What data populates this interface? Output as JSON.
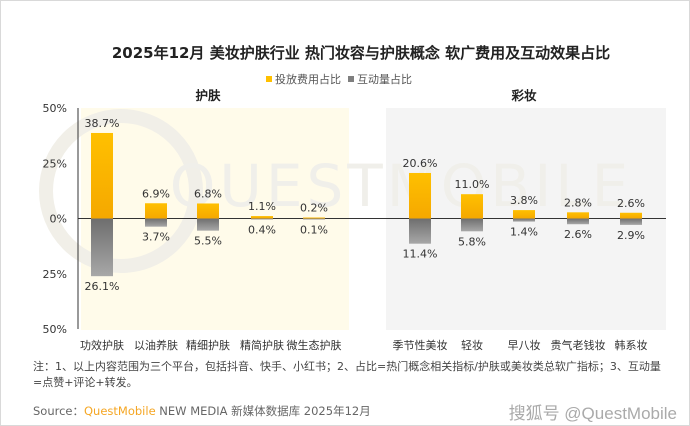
{
  "chart_data": {
    "type": "bar",
    "title": "2025年12月 美妆护肤行业 热门妆容与护肤概念 软广费用及互动效果占比",
    "legend": [
      {
        "name": "投放费用占比",
        "color": "#FFC000"
      },
      {
        "name": "互动量占比",
        "color": "#7F7F7F"
      }
    ],
    "legend_position": "top-center",
    "yticks": [
      "50%",
      "25%",
      "0%",
      "25%",
      "50%"
    ],
    "ylim": [
      -50,
      50
    ],
    "groups": [
      {
        "name": "护肤",
        "categories": [
          "功效护肤",
          "以油养肤",
          "精细护肤",
          "精简护肤",
          "微生态护肤"
        ],
        "spend": [
          38.7,
          6.9,
          6.8,
          1.1,
          0.2
        ],
        "interaction": [
          26.1,
          3.7,
          5.5,
          0.4,
          0.1
        ],
        "spend_labels": [
          "38.7%",
          "6.9%",
          "6.8%",
          "1.1%",
          "0.2%"
        ],
        "interaction_labels": [
          "26.1%",
          "3.7%",
          "5.5%",
          "0.4%",
          "0.1%"
        ]
      },
      {
        "name": "彩妆",
        "categories": [
          "季节性美妆",
          "轻妆",
          "早八妆",
          "贵气老钱妆",
          "韩系妆"
        ],
        "spend": [
          20.6,
          11.0,
          3.8,
          2.8,
          2.6
        ],
        "interaction": [
          11.4,
          5.8,
          1.4,
          2.6,
          2.9
        ],
        "spend_labels": [
          "20.6%",
          "11.0%",
          "3.8%",
          "2.8%",
          "2.6%"
        ],
        "interaction_labels": [
          "11.4%",
          "5.8%",
          "1.4%",
          "2.6%",
          "2.9%"
        ]
      }
    ]
  },
  "note": "注：1、以上内容范围为三个平台，包括抖音、快手、小红书；2、占比=热门概念相关指标/护肤或美妆类总软广指标；3、互动量=点赞+评论+转发。",
  "source": {
    "label": "Source：",
    "brand": "QuestMobile",
    "rest": " NEW MEDIA 新媒体数据库 2025年12月"
  },
  "watermark": "QUESTMOBILE",
  "platform_watermark": "搜狐号 @QuestMobile"
}
